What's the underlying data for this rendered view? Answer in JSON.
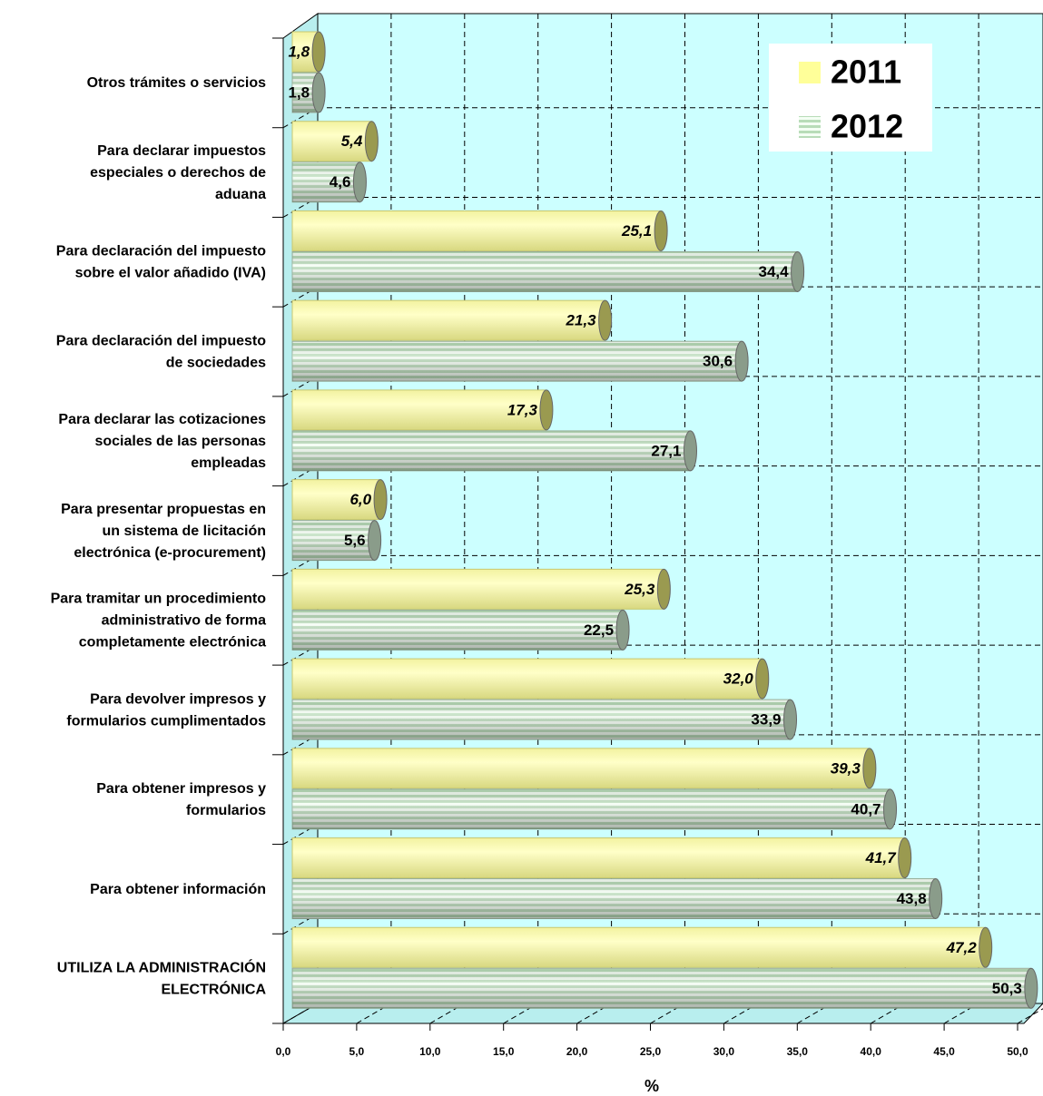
{
  "chart_data": {
    "type": "bar",
    "orientation": "horizontal",
    "xlabel": "%",
    "categories": [
      [
        "Otros trámites o servicios"
      ],
      [
        "Para declarar impuestos",
        "especiales o derechos de",
        "aduana"
      ],
      [
        "Para declaración del impuesto",
        "sobre el valor añadido (IVA)"
      ],
      [
        "Para declaración del impuesto",
        "de sociedades"
      ],
      [
        "Para declarar las cotizaciones",
        "sociales de las personas",
        "empleadas"
      ],
      [
        "Para presentar propuestas en",
        "un sistema de licitación",
        "electrónica (e-procurement)"
      ],
      [
        "Para tramitar un procedimiento",
        "administrativo de forma",
        "completamente electrónica"
      ],
      [
        "Para devolver impresos y",
        "formularios cumplimentados"
      ],
      [
        "Para obtener impresos y",
        "formularios"
      ],
      [
        "Para obtener información"
      ],
      [
        "UTILIZA LA ADMINISTRACIÓN",
        "ELECTRÓNICA"
      ]
    ],
    "series": [
      {
        "name": "2011",
        "color": "#ffff99",
        "values": [
          1.8,
          5.4,
          25.1,
          21.3,
          17.3,
          6.0,
          25.3,
          32.0,
          39.3,
          41.7,
          47.2
        ],
        "value_labels": [
          "1,8",
          "5,4",
          "25,1",
          "21,3",
          "17,3",
          "6,0",
          "25,3",
          "32,0",
          "39,3",
          "41,7",
          "47,2"
        ]
      },
      {
        "name": "2012",
        "color": "#c8ecc8",
        "values": [
          1.8,
          4.6,
          34.4,
          30.6,
          27.1,
          5.6,
          22.5,
          33.9,
          40.7,
          43.8,
          50.3
        ],
        "value_labels": [
          "1,8",
          "4,6",
          "34,4",
          "30,6",
          "27,1",
          "5,6",
          "22,5",
          "33,9",
          "40,7",
          "43,8",
          "50,3"
        ]
      }
    ],
    "xlim": [
      0,
      50
    ],
    "xticks": [
      {
        "value": 0,
        "label": "0,0"
      },
      {
        "value": 5,
        "label": "5,0"
      },
      {
        "value": 10,
        "label": "10,0"
      },
      {
        "value": 15,
        "label": "15,0"
      },
      {
        "value": 20,
        "label": "20,0"
      },
      {
        "value": 25,
        "label": "25,0"
      },
      {
        "value": 30,
        "label": "30,0"
      },
      {
        "value": 35,
        "label": "35,0"
      },
      {
        "value": 40,
        "label": "40,0"
      },
      {
        "value": 45,
        "label": "45,0"
      },
      {
        "value": 50,
        "label": "50,0"
      }
    ],
    "grid": true,
    "legend": "top-right"
  }
}
